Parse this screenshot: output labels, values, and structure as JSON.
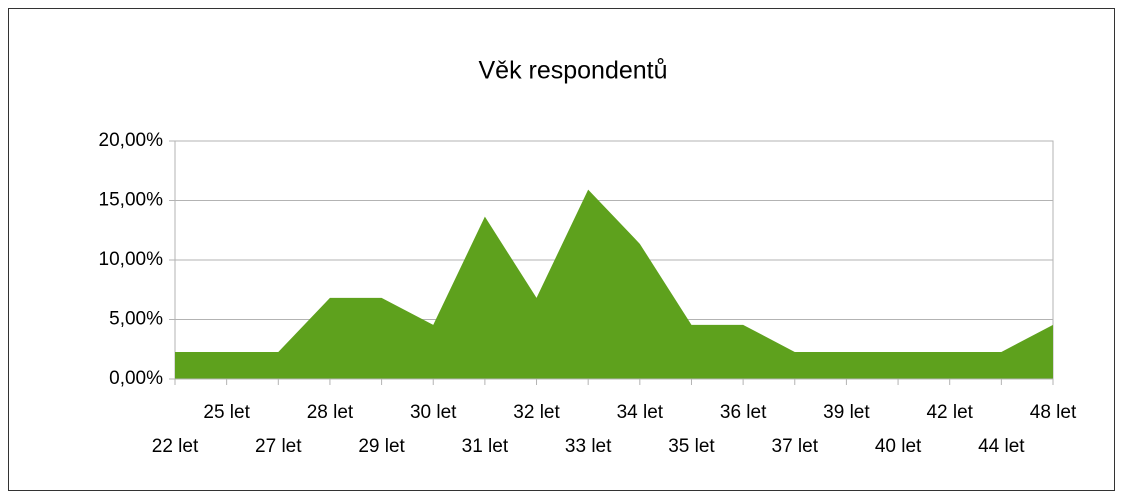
{
  "chart_data": {
    "type": "area",
    "title": "Věk respondentů",
    "categories": [
      "22 let",
      "25 let",
      "27 let",
      "28 let",
      "29 let",
      "30 let",
      "31 let",
      "32 let",
      "33 let",
      "34 let",
      "35 let",
      "36 let",
      "37 let",
      "39 let",
      "40 let",
      "42 let",
      "44 let",
      "48 let"
    ],
    "values": [
      2.27,
      2.27,
      2.27,
      6.82,
      6.82,
      4.55,
      13.64,
      6.82,
      15.91,
      11.36,
      4.55,
      4.55,
      2.27,
      2.27,
      2.27,
      2.27,
      2.27,
      4.55
    ],
    "color": "#5ea11d",
    "ylim": [
      0,
      20
    ],
    "yticks": [
      {
        "value": 0,
        "label": "0,00%"
      },
      {
        "value": 5,
        "label": "5,00%"
      },
      {
        "value": 10,
        "label": "10,00%"
      },
      {
        "value": 15,
        "label": "15,00%"
      },
      {
        "value": 20,
        "label": "20,00%"
      }
    ],
    "grid": true
  }
}
